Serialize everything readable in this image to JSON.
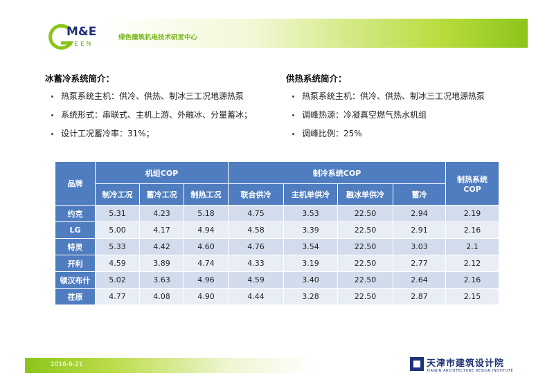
{
  "header": {
    "logo_me": "M&E",
    "logo_reen": "REEN",
    "subtitle": "绿色建筑机电技术研发中心",
    "colors": {
      "green": "#8cc51a",
      "navy": "#1f2f7a"
    }
  },
  "left": {
    "title": "冰蓄冷系统简介：",
    "items": [
      "热泵系统主机：供冷、供热、制冰三工况地源热泵",
      "系统形式：串联式、主机上游、外融冰、分量蓄冰；",
      "设计工况蓄冷率：31%；"
    ]
  },
  "right": {
    "title": "供热系统简介：",
    "items": [
      "热泵系统主机：供冷、供热、制冰三工况地源热泵",
      "调峰热源：冷凝真空燃气热水机组",
      "调峰比例：25%"
    ]
  },
  "table": {
    "brand_header": "品牌",
    "group1": "机组COP",
    "group2": "制冷系统COP",
    "heat_header_1": "制热系统",
    "heat_header_2": "COP",
    "sub_headers": [
      "制冷工况",
      "蓄冷工况",
      "制热工况",
      "联合供冷",
      "主机单供冷",
      "融冰单供冷",
      "蓄冷"
    ],
    "header_color": "#4f7dc0",
    "rows": [
      {
        "brand": "约克",
        "values": [
          "5.31",
          "4.23",
          "5.18",
          "4.75",
          "3.53",
          "22.50",
          "2.94",
          "2.19"
        ]
      },
      {
        "brand": "LG",
        "values": [
          "5.00",
          "4.17",
          "4.94",
          "4.58",
          "3.39",
          "22.50",
          "2.91",
          "2.16"
        ]
      },
      {
        "brand": "特灵",
        "values": [
          "5.33",
          "4.42",
          "4.60",
          "4.76",
          "3.54",
          "22.50",
          "3.03",
          "2.1"
        ]
      },
      {
        "brand": "开利",
        "values": [
          "4.59",
          "3.89",
          "4.74",
          "4.33",
          "3.19",
          "22.50",
          "2.77",
          "2.12"
        ]
      },
      {
        "brand": "顿汉布什",
        "values": [
          "5.02",
          "3.63",
          "4.96",
          "4.59",
          "3.40",
          "22.50",
          "2.64",
          "2.16"
        ]
      },
      {
        "brand": "荏原",
        "values": [
          "4.77",
          "4.08",
          "4.90",
          "4.44",
          "3.28",
          "22.50",
          "2.87",
          "2.15"
        ]
      }
    ]
  },
  "footer": {
    "date": "2016-9-21",
    "institute_cn": "天津市建筑设计院",
    "institute_en": "TIANJIN ARCHITECTURE DESIGN INSTITUTE"
  }
}
